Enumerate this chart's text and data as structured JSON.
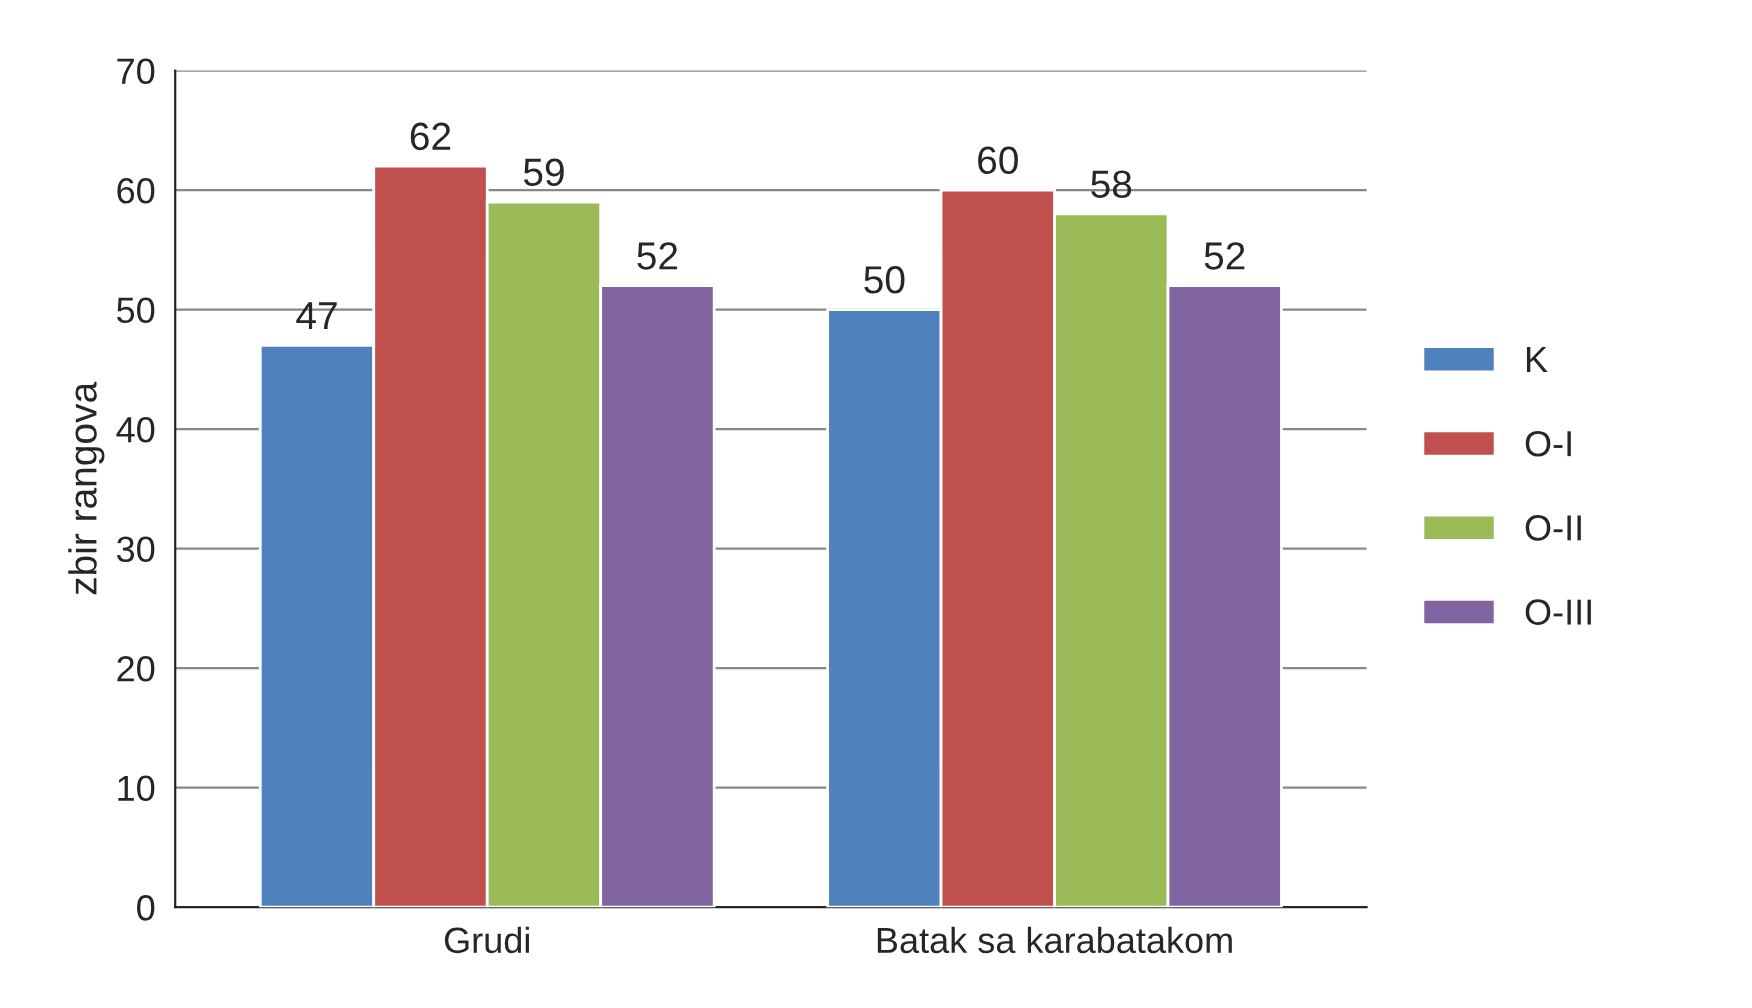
{
  "chart_data": {
    "type": "bar",
    "ylabel": "zbir rangova",
    "categories": [
      "Grudi",
      "Batak sa karabatakom"
    ],
    "series": [
      {
        "name": "K",
        "color": "#4f81bd",
        "values": [
          47,
          50
        ]
      },
      {
        "name": "O-I",
        "color": "#c0504d",
        "values": [
          62,
          60
        ]
      },
      {
        "name": "O-II",
        "color": "#9bbb59",
        "values": [
          59,
          58
        ]
      },
      {
        "name": "O-III",
        "color": "#8064a2",
        "values": [
          52,
          52
        ]
      }
    ],
    "ylim": [
      0,
      70
    ],
    "yticks": [
      0,
      10,
      20,
      30,
      40,
      50,
      60,
      70
    ],
    "grid": "y",
    "legend": "right",
    "data_labels": true
  }
}
